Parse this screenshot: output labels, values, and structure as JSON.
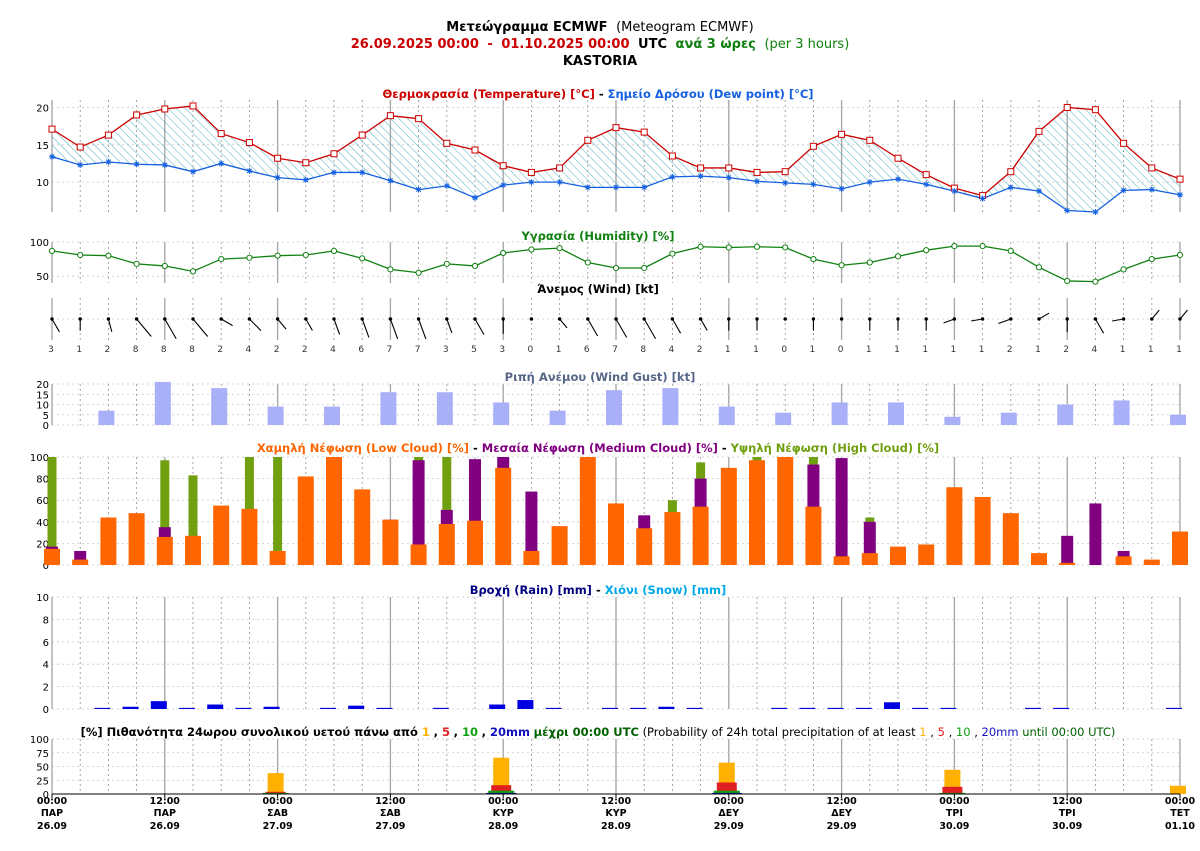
{
  "header": {
    "title_gr": "Μετεώγραμμα ECMWF",
    "title_en": "(Meteogram ECMWF)",
    "start": "26.09.2025 00:00",
    "dash": "-",
    "end": "01.10.2025 00:00",
    "utc": "UTC",
    "step_gr": "ανά 3 ώρες",
    "step_en": "(per 3 hours)",
    "location": "KASTORIA"
  },
  "colors": {
    "temperature": "#cc0000",
    "dewpoint": "#1560e0",
    "humidity": "#108010",
    "gust": "#aab0f8",
    "low_cloud": "#ff6600",
    "medium_cloud": "#800080",
    "high_cloud": "#70a010",
    "rain": "#0000e0",
    "snow": "#00a8e8",
    "prob_1": "#ffb000",
    "prob_5": "#e02020",
    "prob_10": "#10a010",
    "prob_20": "#1010c0"
  },
  "x_axis": {
    "ticks": [
      {
        "time": "00:00",
        "day": "ΠΑΡ",
        "date": "26.09"
      },
      {
        "time": "12:00",
        "day": "ΠΑΡ",
        "date": "26.09"
      },
      {
        "time": "00:00",
        "day": "ΣΑΒ",
        "date": "27.09"
      },
      {
        "time": "12:00",
        "day": "ΣΑΒ",
        "date": "27.09"
      },
      {
        "time": "00:00",
        "day": "ΚΥΡ",
        "date": "28.09"
      },
      {
        "time": "12:00",
        "day": "ΚΥΡ",
        "date": "28.09"
      },
      {
        "time": "00:00",
        "day": "ΔΕΥ",
        "date": "29.09"
      },
      {
        "time": "12:00",
        "day": "ΔΕΥ",
        "date": "29.09"
      },
      {
        "time": "00:00",
        "day": "ΤΡΙ",
        "date": "30.09"
      },
      {
        "time": "12:00",
        "day": "ΤΡΙ",
        "date": "30.09"
      },
      {
        "time": "00:00",
        "day": "ΤΕΤ",
        "date": "01.10"
      }
    ]
  },
  "chart_data": [
    {
      "type": "line",
      "title": "Θερμοκρασία (Temperature) [°C] - Σημείο Δρόσου (Dew point) [°C]",
      "title_parts": {
        "temp": "Θερμοκρασία (Temperature) [°C]",
        "sep": " - ",
        "dew": "Σημείο Δρόσου (Dew point) [°C]"
      },
      "ylim": [
        6,
        21
      ],
      "yticks": [
        "10",
        "15",
        "20"
      ],
      "series": [
        {
          "name": "Temperature",
          "values": [
            17.1,
            14.7,
            16.3,
            19.0,
            19.8,
            20.2,
            16.5,
            15.3,
            13.2,
            12.6,
            13.8,
            16.3,
            18.9,
            18.5,
            15.2,
            14.3,
            12.2,
            11.3,
            11.9,
            15.6,
            17.3,
            16.7,
            13.5,
            11.9,
            11.9,
            11.3,
            11.4,
            14.8,
            16.4,
            15.6,
            13.2,
            11.0,
            9.2,
            8.2,
            11.4,
            16.8,
            20.0,
            19.7,
            15.2,
            11.9,
            10.4
          ]
        },
        {
          "name": "Dew point",
          "values": [
            13.4,
            12.3,
            12.7,
            12.4,
            12.3,
            11.4,
            12.5,
            11.5,
            10.6,
            10.3,
            11.3,
            11.3,
            10.2,
            9.0,
            9.5,
            7.9,
            9.6,
            10.0,
            10.0,
            9.3,
            9.3,
            9.3,
            10.7,
            10.8,
            10.6,
            10.1,
            9.9,
            9.7,
            9.1,
            10.0,
            10.4,
            9.7,
            8.8,
            7.8,
            9.3,
            8.8,
            6.2,
            6.0,
            8.9,
            9.0,
            8.3
          ]
        }
      ]
    },
    {
      "type": "line",
      "title": "Υγρασία (Humidity) [%]",
      "ylim": [
        40,
        100
      ],
      "yticks": [
        "50",
        "100"
      ],
      "series": [
        {
          "name": "Humidity",
          "values": [
            87,
            81,
            80,
            68,
            65,
            57,
            75,
            77,
            80,
            81,
            87,
            76,
            60,
            55,
            68,
            65,
            84,
            89,
            91,
            70,
            62,
            62,
            83,
            93,
            92,
            93,
            92,
            75,
            66,
            70,
            79,
            88,
            94,
            94,
            87,
            63,
            43,
            42,
            60,
            75,
            81
          ]
        }
      ]
    },
    {
      "type": "table",
      "title": "Άνεμος (Wind) [kt]",
      "speed_labels": [
        "3",
        "1",
        "2",
        "8",
        "8",
        "8",
        "2",
        "4",
        "2",
        "2",
        "4",
        "6",
        "7",
        "7",
        "3",
        "5",
        "3",
        "0",
        "1",
        "6",
        "7",
        "8",
        "4",
        "2",
        "1",
        "1",
        "0",
        "1",
        "0",
        "1",
        "1",
        "1",
        "1",
        "1",
        "2",
        "1",
        "2",
        "4",
        "1",
        "1",
        "1"
      ],
      "direction_deg": [
        330,
        0,
        345,
        320,
        330,
        320,
        300,
        315,
        320,
        330,
        340,
        340,
        340,
        340,
        340,
        330,
        0,
        0,
        320,
        330,
        330,
        330,
        330,
        330,
        0,
        0,
        0,
        0,
        70,
        0,
        0,
        0,
        70,
        80,
        70,
        240,
        0,
        330,
        80,
        220,
        220
      ]
    },
    {
      "type": "bar",
      "title": "Ριπή Ανέμου (Wind Gust) [kt]",
      "ylim": [
        0,
        20
      ],
      "yticks": [
        "0",
        "5",
        "10",
        "15",
        "20"
      ],
      "x_step": 6,
      "values": [
        7,
        21,
        18,
        9,
        9,
        16,
        16,
        11,
        7,
        17,
        18,
        9,
        6,
        11,
        11,
        4,
        6,
        10,
        12,
        5
      ]
    },
    {
      "type": "bar",
      "title": "Χαμηλή Νέφωση (Low Cloud) [%] - Μεσαία Νέφωση (Medium Cloud) [%] - Υψηλή Νέφωση (High Cloud) [%]",
      "title_parts": {
        "low": "Χαμηλή Νέφωση (Low Cloud) [%]",
        "sep1": " - ",
        "medium": "Μεσαία Νέφωση (Medium Cloud) [%]",
        "sep2": " - ",
        "high": "Υψηλή Νέφωση (High Cloud) [%]"
      },
      "ylim": [
        0,
        100
      ],
      "yticks": [
        "0",
        "20",
        "40",
        "60",
        "80",
        "100"
      ],
      "series": [
        {
          "name": "Low Cloud",
          "values": [
            15,
            5,
            44,
            48,
            26,
            27,
            55,
            52,
            13,
            82,
            100,
            70,
            42,
            19,
            38,
            41,
            90,
            13,
            36,
            100,
            57,
            34,
            49,
            54,
            90,
            97,
            100,
            54,
            8,
            11,
            17,
            19,
            72,
            63,
            48,
            11,
            2,
            0,
            8,
            5,
            31
          ]
        },
        {
          "name": "Medium Cloud",
          "values": [
            17,
            13,
            0,
            0,
            35,
            0,
            0,
            0,
            0,
            0,
            0,
            0,
            42,
            97,
            51,
            98,
            100,
            68,
            0,
            0,
            0,
            46,
            0,
            80,
            0,
            0,
            0,
            93,
            99,
            40,
            0,
            0,
            0,
            0,
            0,
            0,
            27,
            57,
            13,
            0,
            0
          ]
        },
        {
          "name": "High Cloud",
          "values": [
            100,
            0,
            0,
            0,
            97,
            83,
            0,
            100,
            100,
            0,
            0,
            0,
            0,
            100,
            100,
            0,
            0,
            0,
            0,
            0,
            0,
            0,
            60,
            95,
            0,
            100,
            100,
            100,
            0,
            44,
            0,
            0,
            0,
            0,
            0,
            0,
            0,
            0,
            0,
            0,
            0
          ]
        }
      ]
    },
    {
      "type": "bar",
      "title": "Βροχή (Rain) [mm] - Χιόνι (Snow) [mm]",
      "title_parts": {
        "rain": "Βροχή (Rain) [mm]",
        "sep": " - ",
        "snow": "Χιόνι (Snow) [mm]"
      },
      "ylim": [
        0,
        10
      ],
      "yticks": [
        "0",
        "2",
        "4",
        "6",
        "8",
        "10"
      ],
      "series": [
        {
          "name": "Rain",
          "values": [
            0,
            0,
            0.1,
            0.2,
            0.7,
            0.1,
            0.4,
            0.1,
            0.2,
            0,
            0.1,
            0.3,
            0.1,
            0,
            0.1,
            0,
            0.4,
            0.8,
            0.1,
            0,
            0.1,
            0.1,
            0.2,
            0.1,
            0,
            0,
            0.1,
            0.1,
            0.1,
            0.1,
            0.6,
            0.1,
            0.1,
            0,
            0,
            0.1,
            0.1,
            0,
            0,
            0,
            0.1
          ]
        },
        {
          "name": "Snow",
          "values": [
            0,
            0,
            0,
            0,
            0,
            0,
            0,
            0,
            0,
            0,
            0,
            0,
            0,
            0,
            0,
            0,
            0,
            0,
            0,
            0,
            0,
            0,
            0,
            0,
            0,
            0,
            0,
            0,
            0,
            0,
            0,
            0,
            0,
            0,
            0,
            0,
            0,
            0,
            0,
            0,
            0
          ]
        }
      ]
    },
    {
      "type": "bar",
      "title_parts": {
        "prefix": "[%] Πιθανότητα 24ωρου συνολικού υετού πάνω από ",
        "v1": "1",
        "c1": ", ",
        "v5": "5",
        "c2": ", ",
        "v10": "10",
        "c3": ", ",
        "v20": "20mm",
        "mid": " μέχρι 00:00 UTC",
        "en": " (Probability of 24h total precipitation of at least ",
        "e1": "1",
        "ec1": ", ",
        "e5": "5",
        "ec2": ", ",
        "e10": "10",
        "ec3": ", ",
        "e20": "20mm",
        "until": " until 00:00 UTC)"
      },
      "ylim": [
        0,
        100
      ],
      "yticks": [
        "0",
        "25",
        "50",
        "75",
        "100"
      ],
      "days": [
        "27.09",
        "28.09",
        "29.09",
        "30.09",
        "01.10"
      ],
      "series": [
        {
          "name": "1",
          "values": [
            38,
            66,
            57,
            44,
            15
          ]
        },
        {
          "name": "5",
          "values": [
            4,
            16,
            21,
            13,
            0
          ]
        },
        {
          "name": "10",
          "values": [
            2,
            6,
            6,
            2,
            0
          ]
        },
        {
          "name": "20",
          "values": [
            0,
            2,
            2,
            0,
            0
          ]
        }
      ]
    }
  ]
}
